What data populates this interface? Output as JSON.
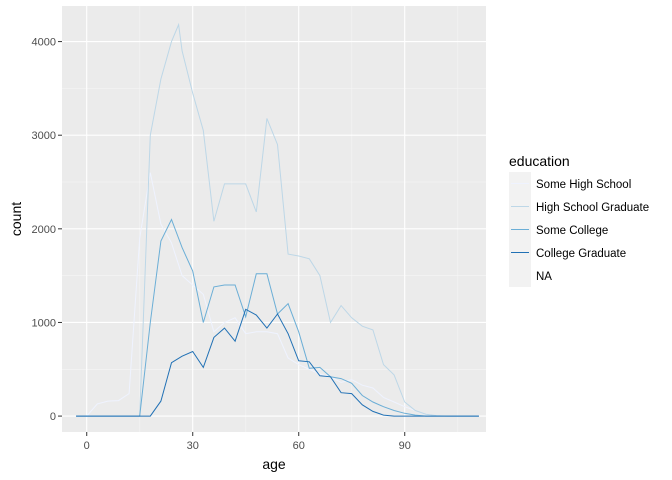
{
  "chart_data": {
    "type": "line",
    "xlabel": "age",
    "ylabel": "count",
    "xlim": [
      -7,
      113
    ],
    "ylim": [
      -170,
      4380
    ],
    "x_ticks": [
      0,
      30,
      60,
      90
    ],
    "y_ticks": [
      0,
      1000,
      2000,
      3000,
      4000
    ],
    "grid": true,
    "legend": {
      "title": "education",
      "position": "right"
    },
    "series": [
      {
        "name": "Some High School",
        "color": "#eff3ff",
        "points": [
          [
            -3,
            0
          ],
          [
            0,
            0
          ],
          [
            3,
            130
          ],
          [
            6,
            160
          ],
          [
            9,
            165
          ],
          [
            12,
            240
          ],
          [
            15,
            1900
          ],
          [
            18,
            2600
          ],
          [
            21,
            2050
          ],
          [
            24,
            1850
          ],
          [
            27,
            1500
          ],
          [
            30,
            1400
          ],
          [
            33,
            1300
          ],
          [
            36,
            900
          ],
          [
            39,
            1000
          ],
          [
            42,
            1050
          ],
          [
            45,
            880
          ],
          [
            48,
            900
          ],
          [
            51,
            900
          ],
          [
            54,
            880
          ],
          [
            57,
            620
          ],
          [
            60,
            550
          ],
          [
            63,
            500
          ],
          [
            66,
            450
          ],
          [
            69,
            420
          ],
          [
            72,
            360
          ],
          [
            75,
            390
          ],
          [
            78,
            330
          ],
          [
            81,
            300
          ],
          [
            84,
            200
          ],
          [
            87,
            150
          ],
          [
            90,
            100
          ],
          [
            93,
            60
          ],
          [
            96,
            20
          ],
          [
            99,
            5
          ],
          [
            102,
            0
          ],
          [
            105,
            0
          ],
          [
            108,
            0
          ],
          [
            111,
            0
          ]
        ]
      },
      {
        "name": "High School Graduate",
        "color": "#bdd7e7",
        "points": [
          [
            -3,
            0
          ],
          [
            0,
            0
          ],
          [
            3,
            0
          ],
          [
            6,
            0
          ],
          [
            9,
            0
          ],
          [
            12,
            0
          ],
          [
            15,
            0
          ],
          [
            18,
            3000
          ],
          [
            21,
            3600
          ],
          [
            24,
            4000
          ],
          [
            26,
            4180
          ],
          [
            27,
            3900
          ],
          [
            30,
            3450
          ],
          [
            33,
            3050
          ],
          [
            36,
            2080
          ],
          [
            39,
            2480
          ],
          [
            42,
            2480
          ],
          [
            45,
            2480
          ],
          [
            48,
            2180
          ],
          [
            51,
            3180
          ],
          [
            54,
            2900
          ],
          [
            57,
            1730
          ],
          [
            60,
            1710
          ],
          [
            63,
            1680
          ],
          [
            66,
            1500
          ],
          [
            69,
            1000
          ],
          [
            72,
            1180
          ],
          [
            75,
            1050
          ],
          [
            78,
            960
          ],
          [
            81,
            920
          ],
          [
            84,
            550
          ],
          [
            87,
            440
          ],
          [
            90,
            150
          ],
          [
            93,
            60
          ],
          [
            96,
            20
          ],
          [
            99,
            5
          ],
          [
            102,
            0
          ],
          [
            105,
            0
          ],
          [
            108,
            0
          ],
          [
            111,
            0
          ]
        ]
      },
      {
        "name": "Some College",
        "color": "#6baed6",
        "points": [
          [
            -3,
            0
          ],
          [
            0,
            0
          ],
          [
            3,
            0
          ],
          [
            6,
            0
          ],
          [
            9,
            0
          ],
          [
            12,
            0
          ],
          [
            15,
            0
          ],
          [
            18,
            1000
          ],
          [
            21,
            1870
          ],
          [
            24,
            2100
          ],
          [
            27,
            1800
          ],
          [
            30,
            1550
          ],
          [
            33,
            1000
          ],
          [
            36,
            1380
          ],
          [
            39,
            1400
          ],
          [
            42,
            1400
          ],
          [
            45,
            1060
          ],
          [
            48,
            1520
          ],
          [
            51,
            1520
          ],
          [
            54,
            1090
          ],
          [
            57,
            1200
          ],
          [
            60,
            900
          ],
          [
            63,
            510
          ],
          [
            66,
            520
          ],
          [
            69,
            420
          ],
          [
            72,
            400
          ],
          [
            75,
            350
          ],
          [
            78,
            220
          ],
          [
            81,
            150
          ],
          [
            84,
            100
          ],
          [
            87,
            60
          ],
          [
            90,
            30
          ],
          [
            93,
            10
          ],
          [
            96,
            0
          ],
          [
            99,
            0
          ],
          [
            102,
            0
          ],
          [
            105,
            0
          ],
          [
            108,
            0
          ],
          [
            111,
            0
          ]
        ]
      },
      {
        "name": "College Graduate",
        "color": "#2171b5",
        "points": [
          [
            -3,
            0
          ],
          [
            0,
            0
          ],
          [
            3,
            0
          ],
          [
            6,
            0
          ],
          [
            9,
            0
          ],
          [
            12,
            0
          ],
          [
            15,
            0
          ],
          [
            18,
            0
          ],
          [
            21,
            160
          ],
          [
            24,
            570
          ],
          [
            27,
            640
          ],
          [
            30,
            690
          ],
          [
            33,
            520
          ],
          [
            36,
            840
          ],
          [
            39,
            940
          ],
          [
            42,
            800
          ],
          [
            45,
            1140
          ],
          [
            48,
            1080
          ],
          [
            51,
            940
          ],
          [
            54,
            1090
          ],
          [
            57,
            880
          ],
          [
            60,
            590
          ],
          [
            63,
            580
          ],
          [
            66,
            430
          ],
          [
            69,
            420
          ],
          [
            72,
            250
          ],
          [
            75,
            240
          ],
          [
            78,
            120
          ],
          [
            81,
            50
          ],
          [
            84,
            10
          ],
          [
            87,
            0
          ],
          [
            90,
            0
          ],
          [
            93,
            0
          ],
          [
            96,
            0
          ],
          [
            99,
            0
          ],
          [
            102,
            0
          ],
          [
            105,
            0
          ],
          [
            108,
            0
          ],
          [
            111,
            0
          ]
        ]
      },
      {
        "name": "NA",
        "color": "#f2f2f2",
        "points": []
      }
    ]
  }
}
